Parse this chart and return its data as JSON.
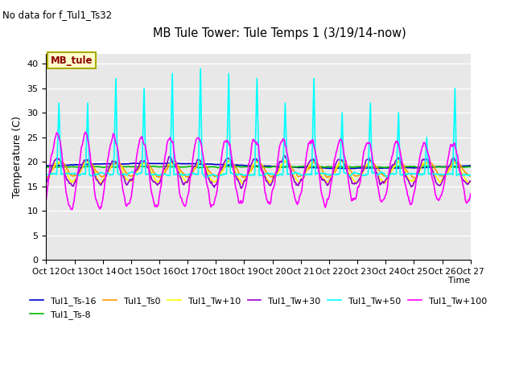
{
  "title": "MB Tule Tower: Tule Temps 1 (3/19/14-now)",
  "subtitle": "No data for f_Tul1_Ts32",
  "xlabel": "Time",
  "ylabel": "Temperature (C)",
  "ylim": [
    0,
    42
  ],
  "yticks": [
    0,
    5,
    10,
    15,
    20,
    25,
    30,
    35,
    40
  ],
  "xlim": [
    0,
    15
  ],
  "xtick_labels": [
    "Oct 12",
    "Oct 13",
    "Oct 14",
    "Oct 15",
    "Oct 16",
    "Oct 17",
    "Oct 18",
    "Oct 19",
    "Oct 20",
    "Oct 21",
    "Oct 22",
    "Oct 23",
    "Oct 24",
    "Oct 25",
    "Oct 26",
    "Oct 27"
  ],
  "plot_bg_color": "#e8e8e8",
  "legend_box_label": "MB_tule",
  "legend_box_color": "#ffffcc",
  "legend_box_border": "#aaaa00",
  "series": [
    {
      "name": "Tul1_Ts-16",
      "color": "#0000cc",
      "lw": 1.2
    },
    {
      "name": "Tul1_Ts-8",
      "color": "#00bb00",
      "lw": 1.2
    },
    {
      "name": "Tul1_Ts0",
      "color": "#ff9900",
      "lw": 1.2
    },
    {
      "name": "Tul1_Tw+10",
      "color": "#ffff00",
      "lw": 1.2
    },
    {
      "name": "Tul1_Tw+30",
      "color": "#9900cc",
      "lw": 1.2
    },
    {
      "name": "Tul1_Tw+50",
      "color": "#00ffff",
      "lw": 1.2
    },
    {
      "name": "Tul1_Tw+100",
      "color": "#ff00ff",
      "lw": 1.2
    }
  ]
}
